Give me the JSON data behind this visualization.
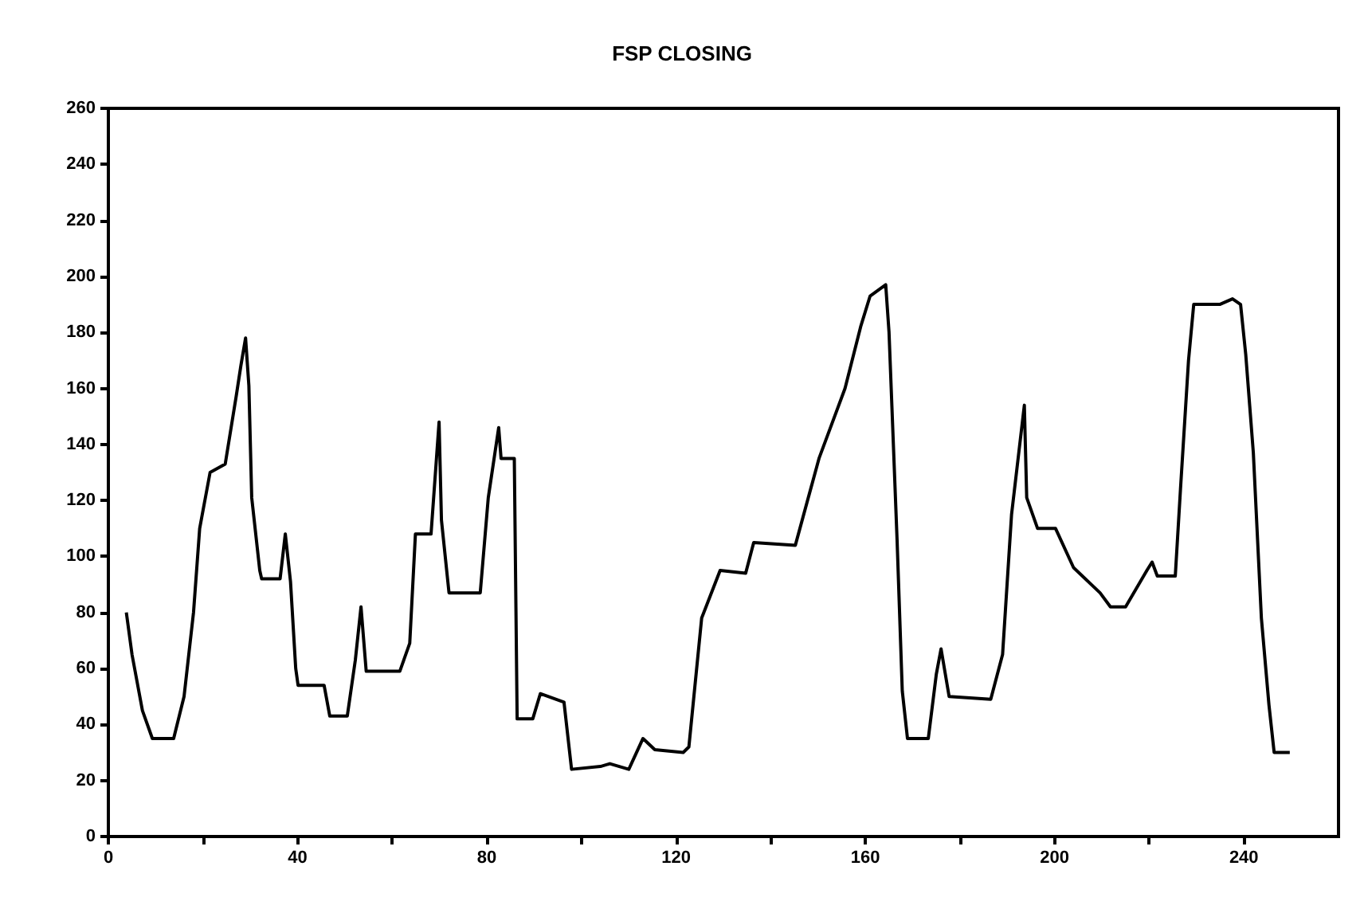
{
  "chart_data": {
    "type": "line",
    "title": "FSP CLOSING",
    "x": [
      3.8,
      5,
      7.2,
      9.3,
      13.8,
      16,
      18,
      19.3,
      21.5,
      24.7,
      27,
      28,
      29,
      29.7,
      30.3,
      32,
      32.4,
      36.3,
      37.4,
      38.5,
      39.6,
      40.1,
      45.6,
      46.8,
      50.5,
      52.2,
      53.4,
      54.5,
      61.6,
      63.7,
      64.9,
      68.2,
      69.9,
      70.4,
      72,
      78.6,
      80.3,
      82.5,
      83,
      85.8,
      86.4,
      89.7,
      91.3,
      96.3,
      97.9,
      104,
      106,
      110,
      113,
      115.5,
      121.5,
      122.7,
      125.4,
      129.3,
      134.7,
      136.4,
      145.2,
      150.2,
      155.7,
      159,
      161,
      164.3,
      165,
      166.7,
      167.8,
      168.9,
      173.3,
      175,
      176,
      177.7,
      186.5,
      189,
      190.9,
      193.6,
      194.1,
      196.4,
      200.2,
      204,
      209.6,
      211.8,
      215,
      219.5,
      220.6,
      221.7,
      225.5,
      226.6,
      228.3,
      229.4,
      234.9,
      237.6,
      239.3,
      240.4,
      242,
      243.7,
      245.3,
      246.4,
      249.7
    ],
    "series": [
      {
        "color": "#000000",
        "values": [
          80,
          65,
          45,
          35,
          35,
          50,
          80,
          110,
          130,
          133,
          157,
          168,
          178,
          161,
          121,
          95,
          92,
          92,
          108,
          91,
          60,
          54,
          54,
          43,
          43,
          63,
          82,
          59,
          59,
          69,
          108,
          108,
          148,
          113,
          87,
          87,
          121,
          146,
          135,
          135,
          42,
          42,
          51,
          48,
          24,
          25,
          26,
          24,
          35,
          31,
          30,
          32,
          78,
          95,
          94,
          105,
          104,
          135,
          160,
          182,
          193,
          197,
          180,
          106,
          52,
          35,
          35,
          58,
          67,
          50,
          49,
          65,
          115,
          154,
          121,
          110,
          110,
          96,
          87,
          82,
          82,
          95,
          98,
          93,
          93,
          124,
          170,
          190,
          190,
          192,
          190,
          172,
          137,
          78,
          47,
          30,
          30
        ]
      }
    ],
    "xlim": [
      0,
      260
    ],
    "xticks": [
      0,
      {
        "value": 20,
        "label": null
      },
      40,
      {
        "value": 60,
        "label": null
      },
      80,
      {
        "value": 100,
        "label": null
      },
      120,
      {
        "value": 140,
        "label": null
      },
      160,
      {
        "value": 180,
        "label": null
      },
      200,
      {
        "value": 220,
        "label": null
      },
      240
    ],
    "ylim": [
      0,
      260
    ],
    "yticks": [
      0,
      20,
      40,
      60,
      80,
      100,
      120,
      140,
      160,
      180,
      200,
      220,
      240,
      260
    ],
    "marker": "none",
    "line_style": "solid"
  }
}
